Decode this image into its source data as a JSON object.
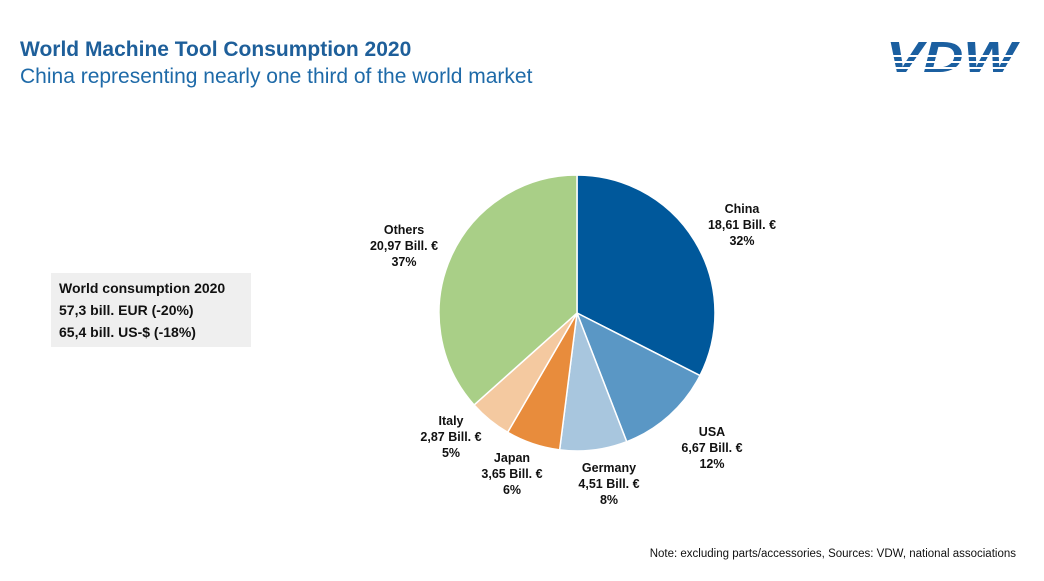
{
  "header": {
    "title": "World Machine Tool Consumption 2020",
    "subtitle": "China representing nearly one third of the world market",
    "logo_text": "VDW"
  },
  "summary_box": {
    "lines": [
      "World consumption 2020",
      "57,3 bill. EUR (-20%)",
      "65,4 bill. US-$ (-18%)"
    ]
  },
  "note": "Note: excluding parts/accessories, Sources: VDW, national associations",
  "colors": {
    "title": "#1e5f9a",
    "logo": "#1b5fa0"
  },
  "chart_data": {
    "type": "pie",
    "title": "",
    "unit": "Bill. €",
    "start": "top, clockwise",
    "slices": [
      {
        "name": "China",
        "value": 18.61,
        "value_label": "18,61 Bill. €",
        "percent": "32%",
        "color": "#00589b"
      },
      {
        "name": "USA",
        "value": 6.67,
        "value_label": "6,67 Bill. €",
        "percent": "12%",
        "color": "#5a97c5"
      },
      {
        "name": "Germany",
        "value": 4.51,
        "value_label": "4,51 Bill. €",
        "percent": "8%",
        "color": "#a8c6de"
      },
      {
        "name": "Japan",
        "value": 3.65,
        "value_label": "3,65 Bill. €",
        "percent": "6%",
        "color": "#e88c3c"
      },
      {
        "name": "Italy",
        "value": 2.87,
        "value_label": "2,87 Bill. €",
        "percent": "5%",
        "color": "#f4c9a0"
      },
      {
        "name": "Others",
        "value": 20.97,
        "value_label": "20,97 Bill. €",
        "percent": "37%",
        "color": "#a9cf87"
      }
    ]
  }
}
